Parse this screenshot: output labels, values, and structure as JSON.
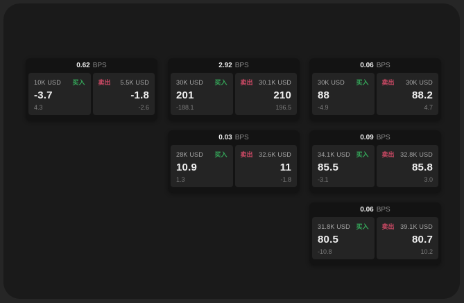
{
  "labels": {
    "unit": "BPS",
    "buy": "买入",
    "sell": "卖出"
  },
  "colors": {
    "buy": "#35a85a",
    "sell": "#d04a66",
    "panel_bg": "#1a1a1a",
    "card_bg": "#131313",
    "cell_bg": "#242424"
  },
  "cards": [
    {
      "bps": "0.62",
      "buy": {
        "amount": "10K USD",
        "value": "-3.7",
        "delta": "4.3"
      },
      "sell": {
        "amount": "5.5K USD",
        "value": "-1.8",
        "delta": "-2.6"
      }
    },
    {
      "bps": "2.92",
      "buy": {
        "amount": "30K USD",
        "value": "201",
        "delta": "-188.1"
      },
      "sell": {
        "amount": "30.1K USD",
        "value": "210",
        "delta": "196.5"
      }
    },
    {
      "bps": "0.06",
      "buy": {
        "amount": "30K USD",
        "value": "88",
        "delta": "-4.9"
      },
      "sell": {
        "amount": "30K USD",
        "value": "88.2",
        "delta": "4.7"
      }
    },
    {
      "bps": "0.03",
      "buy": {
        "amount": "28K USD",
        "value": "10.9",
        "delta": "1.3"
      },
      "sell": {
        "amount": "32.6K USD",
        "value": "11",
        "delta": "-1.8"
      }
    },
    {
      "bps": "0.09",
      "buy": {
        "amount": "34.1K USD",
        "value": "85.5",
        "delta": "-3.1"
      },
      "sell": {
        "amount": "32.8K USD",
        "value": "85.8",
        "delta": "3.0"
      }
    },
    {
      "bps": "0.06",
      "buy": {
        "amount": "31.8K USD",
        "value": "80.5",
        "delta": "-10.8"
      },
      "sell": {
        "amount": "39.1K USD",
        "value": "80.7",
        "delta": "10.2"
      }
    }
  ]
}
